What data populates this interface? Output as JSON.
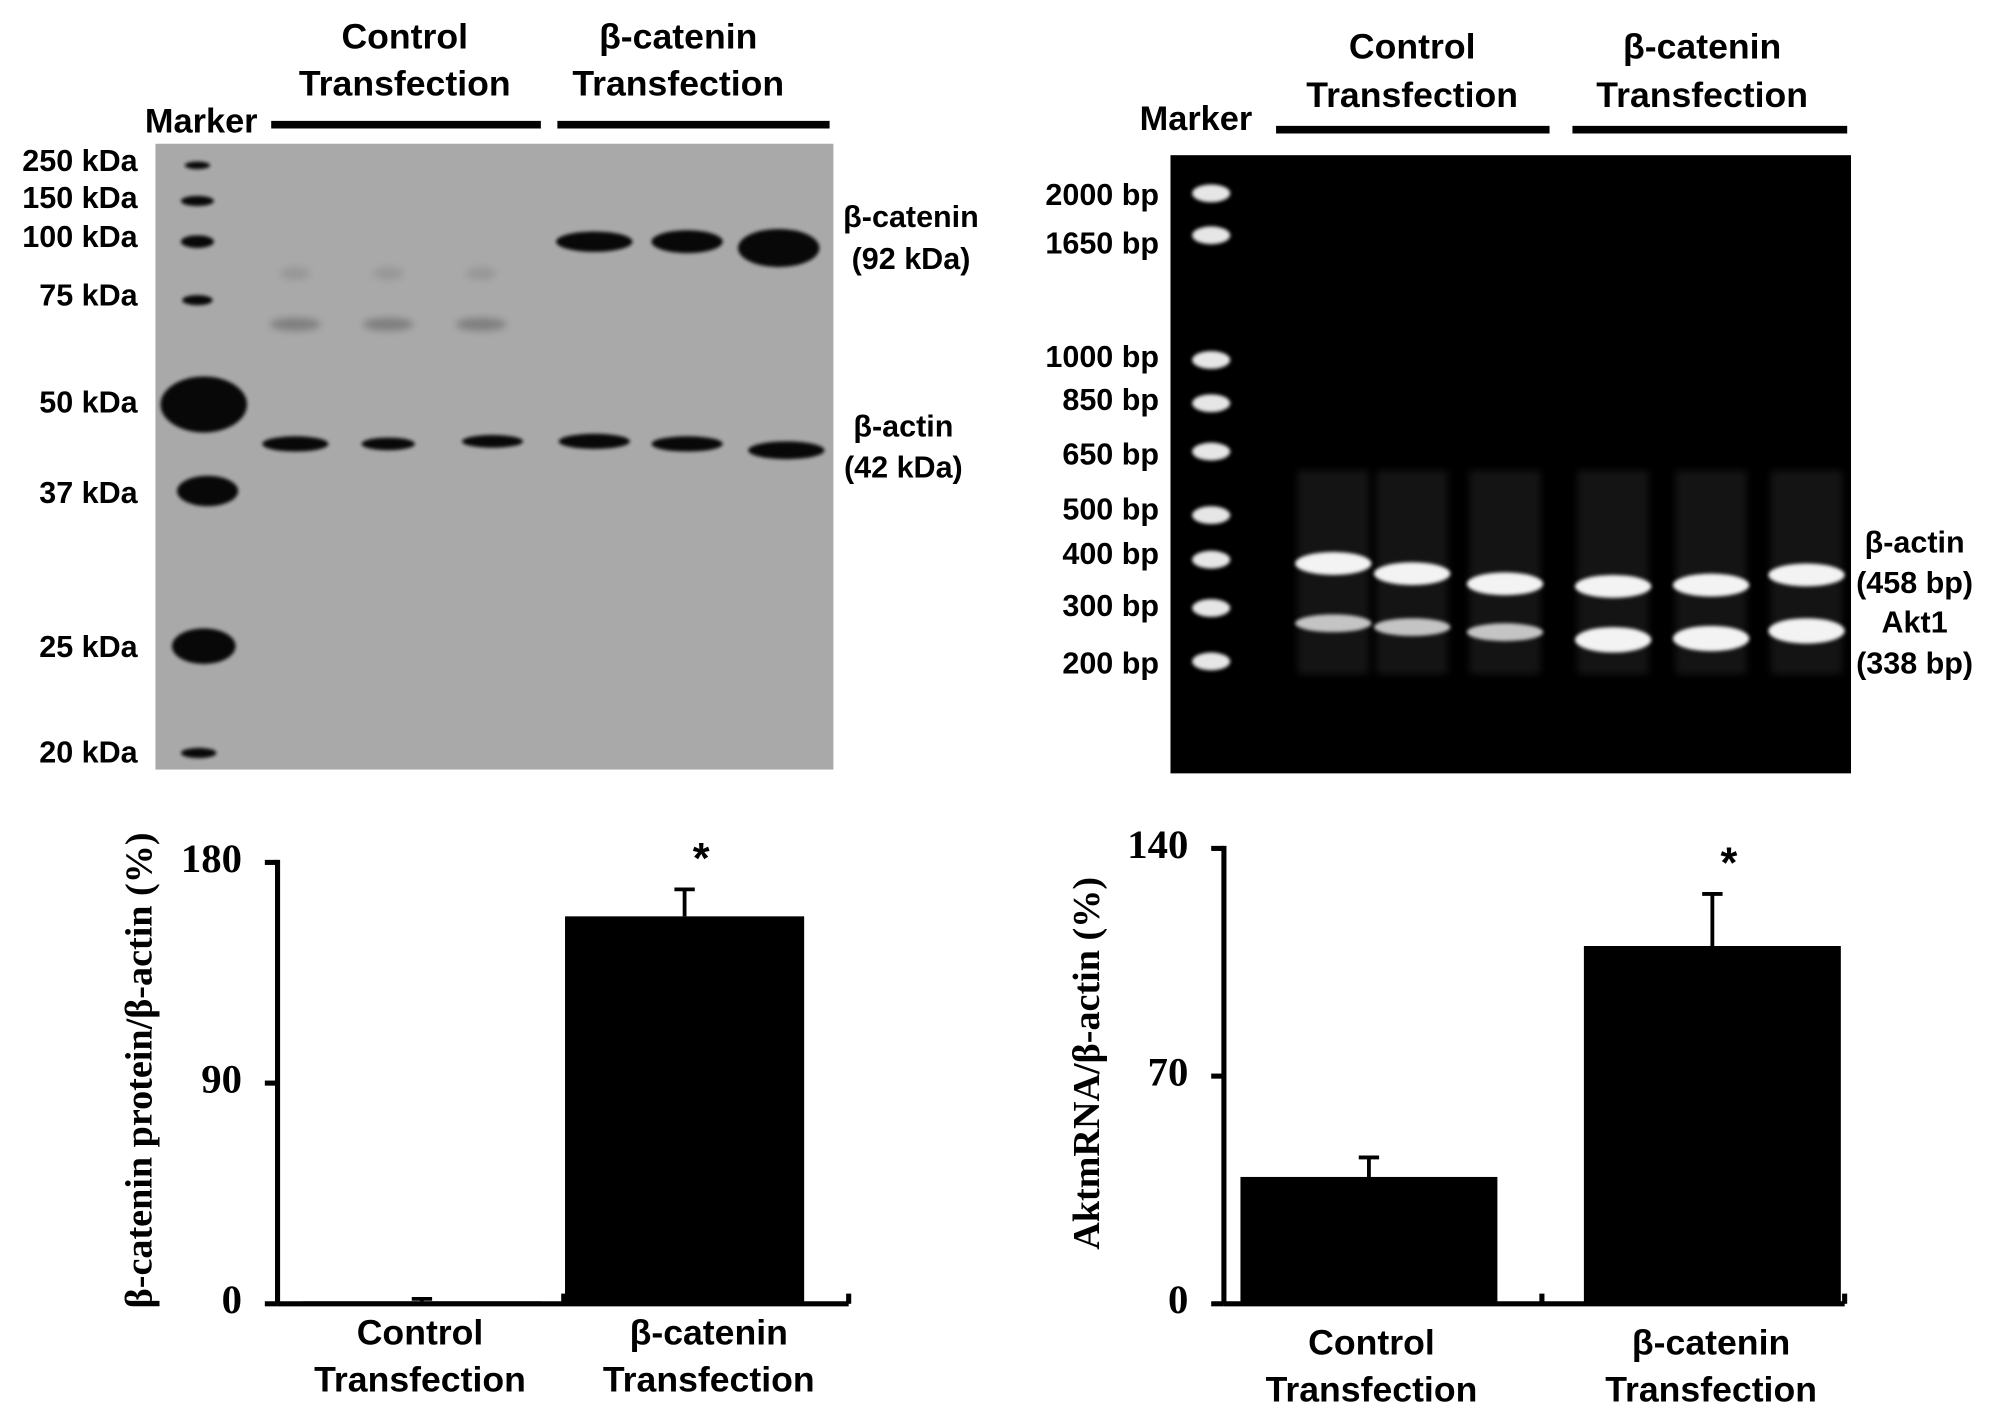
{
  "western_blot": {
    "marker_label": "Marker",
    "group_labels": [
      "Control Transfection",
      "β-catenin Transfection"
    ],
    "size_labels": [
      "250 kDa",
      "150 kDa",
      "100 kDa",
      "75 kDa",
      "50 kDa",
      "37 kDa",
      "25 kDa",
      "20 kDa"
    ],
    "band_labels": [
      "β-catenin",
      "(92 kDa)",
      "β-actin",
      "(42 kDa)"
    ]
  },
  "rt_pcr_gel": {
    "marker_label": "Marker",
    "group_labels": [
      "Control Transfection",
      "β-catenin Transfection"
    ],
    "size_labels": [
      "2000 bp",
      "1650 bp",
      "1000 bp",
      "850 bp",
      "650 bp",
      "500 bp",
      "400 bp",
      "300 bp",
      "200 bp"
    ],
    "band_labels": [
      "β-actin",
      "(458 bp)",
      "Akt1",
      "(338 bp)"
    ]
  },
  "chart_data": [
    {
      "type": "bar",
      "y_label": "β-catenin protein/β-actin (%)",
      "categories": [
        "Control Transfection",
        "β-catenin Transfection"
      ],
      "values": [
        1,
        158
      ],
      "errors": [
        1,
        11
      ],
      "significance": [
        null,
        "*"
      ],
      "color": "#000000",
      "ylim": [
        0,
        180
      ],
      "yticks": [
        0,
        90,
        180
      ]
    },
    {
      "type": "bar",
      "y_label": "AktmRNA/β-actin (%)",
      "categories": [
        "Control Transfection",
        "β-catenin Transfection"
      ],
      "values": [
        39,
        110
      ],
      "errors": [
        6,
        16
      ],
      "significance": [
        null,
        "*"
      ],
      "color": "#000000",
      "ylim": [
        0,
        140
      ],
      "yticks": [
        0,
        70,
        140
      ]
    }
  ]
}
